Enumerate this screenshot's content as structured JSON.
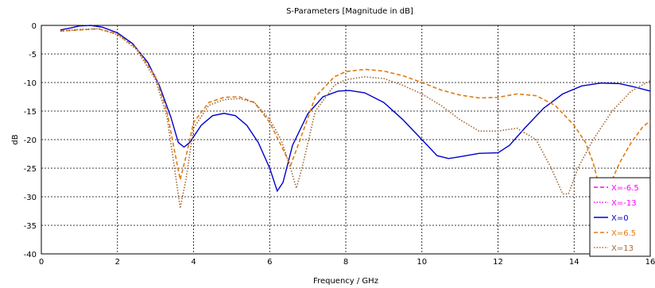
{
  "chart_data": {
    "type": "line",
    "title": "S-Parameters [Magnitude in dB]",
    "xlabel": "Frequency / GHz",
    "ylabel": "dB",
    "xlim": [
      0,
      16
    ],
    "ylim": [
      -40,
      0
    ],
    "xticks": [
      0,
      2,
      4,
      6,
      8,
      10,
      12,
      14,
      16
    ],
    "yticks": [
      0,
      -5,
      -10,
      -15,
      -20,
      -25,
      -30,
      -35,
      -40
    ],
    "grid": true,
    "legend_position": "bottom-right",
    "series": [
      {
        "name": "X=-6.5",
        "color": "#ff00ff",
        "dash": "dashed",
        "points": []
      },
      {
        "name": "X=-13",
        "color": "#ff00ff",
        "dash": "dotted",
        "points": []
      },
      {
        "name": "X=0",
        "color": "#0000cc",
        "dash": "solid",
        "points": [
          [
            0.5,
            -0.8
          ],
          [
            0.8,
            -0.4
          ],
          [
            1.0,
            -0.1
          ],
          [
            1.3,
            0.0
          ],
          [
            1.6,
            -0.3
          ],
          [
            2.0,
            -1.3
          ],
          [
            2.4,
            -3.2
          ],
          [
            2.8,
            -6.5
          ],
          [
            3.1,
            -10.5
          ],
          [
            3.4,
            -16.0
          ],
          [
            3.6,
            -20.5
          ],
          [
            3.75,
            -21.3
          ],
          [
            3.9,
            -20.5
          ],
          [
            4.2,
            -17.5
          ],
          [
            4.5,
            -15.8
          ],
          [
            4.8,
            -15.4
          ],
          [
            5.1,
            -15.8
          ],
          [
            5.4,
            -17.5
          ],
          [
            5.7,
            -20.5
          ],
          [
            6.0,
            -25.0
          ],
          [
            6.2,
            -29.0
          ],
          [
            6.35,
            -27.5
          ],
          [
            6.6,
            -21.0
          ],
          [
            7.0,
            -15.5
          ],
          [
            7.4,
            -12.5
          ],
          [
            7.8,
            -11.5
          ],
          [
            8.1,
            -11.4
          ],
          [
            8.5,
            -11.8
          ],
          [
            9.0,
            -13.5
          ],
          [
            9.5,
            -16.5
          ],
          [
            10.0,
            -20.0
          ],
          [
            10.4,
            -22.8
          ],
          [
            10.7,
            -23.3
          ],
          [
            11.0,
            -23.0
          ],
          [
            11.5,
            -22.4
          ],
          [
            12.0,
            -22.3
          ],
          [
            12.3,
            -21.0
          ],
          [
            12.7,
            -18.0
          ],
          [
            13.2,
            -14.5
          ],
          [
            13.7,
            -12.0
          ],
          [
            14.2,
            -10.6
          ],
          [
            14.7,
            -10.1
          ],
          [
            15.2,
            -10.2
          ],
          [
            15.6,
            -10.8
          ],
          [
            16.0,
            -11.5
          ]
        ]
      },
      {
        "name": "X=6.5",
        "color": "#e07b10",
        "dash": "dashed",
        "points": [
          [
            0.5,
            -1.0
          ],
          [
            1.0,
            -0.8
          ],
          [
            1.5,
            -0.6
          ],
          [
            2.0,
            -1.5
          ],
          [
            2.5,
            -4.0
          ],
          [
            3.0,
            -9.0
          ],
          [
            3.3,
            -15.0
          ],
          [
            3.5,
            -22.0
          ],
          [
            3.65,
            -27.0
          ],
          [
            3.8,
            -23.0
          ],
          [
            4.0,
            -17.0
          ],
          [
            4.4,
            -13.5
          ],
          [
            4.8,
            -12.6
          ],
          [
            5.2,
            -12.5
          ],
          [
            5.6,
            -13.5
          ],
          [
            6.0,
            -17.0
          ],
          [
            6.3,
            -21.0
          ],
          [
            6.55,
            -24.5
          ],
          [
            6.8,
            -20.0
          ],
          [
            7.2,
            -12.5
          ],
          [
            7.7,
            -9.0
          ],
          [
            8.0,
            -8.1
          ],
          [
            8.5,
            -7.7
          ],
          [
            9.0,
            -8.0
          ],
          [
            9.5,
            -8.8
          ],
          [
            10.0,
            -10.0
          ],
          [
            10.5,
            -11.3
          ],
          [
            11.0,
            -12.2
          ],
          [
            11.5,
            -12.7
          ],
          [
            12.0,
            -12.6
          ],
          [
            12.5,
            -12.0
          ],
          [
            13.0,
            -12.3
          ],
          [
            13.5,
            -14.0
          ],
          [
            14.0,
            -17.5
          ],
          [
            14.3,
            -20.5
          ],
          [
            14.5,
            -24.0
          ],
          [
            14.65,
            -28.0
          ],
          [
            14.8,
            -29.0
          ],
          [
            15.0,
            -27.0
          ],
          [
            15.2,
            -24.0
          ],
          [
            15.5,
            -20.5
          ],
          [
            15.8,
            -17.8
          ],
          [
            16.0,
            -16.7
          ]
        ]
      },
      {
        "name": "X=13",
        "color": "#a06838",
        "dash": "dotted",
        "points": [
          [
            0.5,
            -1.0
          ],
          [
            1.0,
            -0.7
          ],
          [
            1.5,
            -0.6
          ],
          [
            2.0,
            -1.6
          ],
          [
            2.5,
            -4.2
          ],
          [
            3.0,
            -9.5
          ],
          [
            3.3,
            -16.0
          ],
          [
            3.5,
            -25.0
          ],
          [
            3.65,
            -32.0
          ],
          [
            3.8,
            -27.0
          ],
          [
            4.0,
            -18.0
          ],
          [
            4.4,
            -14.0
          ],
          [
            4.8,
            -13.0
          ],
          [
            5.2,
            -12.8
          ],
          [
            5.6,
            -13.5
          ],
          [
            6.0,
            -16.5
          ],
          [
            6.3,
            -20.0
          ],
          [
            6.55,
            -25.0
          ],
          [
            6.7,
            -28.5
          ],
          [
            6.85,
            -25.0
          ],
          [
            7.2,
            -15.0
          ],
          [
            7.7,
            -10.5
          ],
          [
            8.0,
            -9.5
          ],
          [
            8.5,
            -9.0
          ],
          [
            9.0,
            -9.3
          ],
          [
            9.5,
            -10.5
          ],
          [
            10.0,
            -12.0
          ],
          [
            10.5,
            -14.0
          ],
          [
            11.0,
            -16.5
          ],
          [
            11.5,
            -18.5
          ],
          [
            12.0,
            -18.5
          ],
          [
            12.5,
            -18.0
          ],
          [
            13.0,
            -20.0
          ],
          [
            13.4,
            -25.0
          ],
          [
            13.7,
            -29.5
          ],
          [
            13.85,
            -29.5
          ],
          [
            14.1,
            -25.0
          ],
          [
            14.5,
            -20.0
          ],
          [
            15.0,
            -15.0
          ],
          [
            15.5,
            -11.5
          ],
          [
            16.0,
            -9.7
          ]
        ]
      }
    ]
  }
}
